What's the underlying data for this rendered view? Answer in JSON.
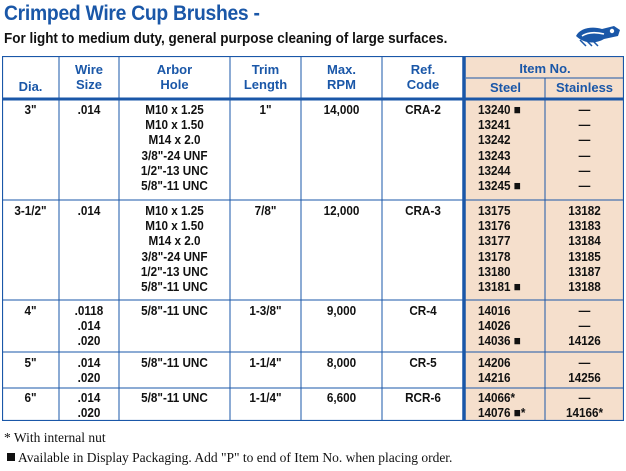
{
  "title": "Crimped Wire Cup Brushes -",
  "subtitle": "For light to medium duty, general purpose cleaning of large surfaces.",
  "logo_icon": "hand-brush-logo-icon",
  "colors": {
    "accent": "#1a57a8",
    "item_bg": "#f5dfcc"
  },
  "headers": {
    "dia": "Dia.",
    "wire_size": [
      "Wire",
      "Size"
    ],
    "arbor_hole": [
      "Arbor",
      "Hole"
    ],
    "trim_length": [
      "Trim",
      "Length"
    ],
    "max_rpm": [
      "Max.",
      "RPM"
    ],
    "ref_code": [
      "Ref.",
      "Code"
    ],
    "item_no": "Item No.",
    "steel": "Steel",
    "stainless": "Stainless"
  },
  "groups": [
    {
      "dia": "3\"",
      "wire": ".014",
      "arbor": "M10 x 1.25\nM10 x 1.50\nM14 x 2.0\n3/8\"-24 UNF\n1/2\"-13 UNC\n5/8\"-11 UNC",
      "trim": "1\"",
      "rpm": "14,000",
      "ref": "CRA-2",
      "steel": "13240 ■\n13241\n13242\n13243\n13244\n13245 ■",
      "stainless": "—\n—\n—\n—\n—\n—"
    },
    {
      "dia": "3-1/2\"",
      "wire": ".014",
      "arbor": "M10 x 1.25\nM10 x 1.50\nM14 x 2.0\n3/8\"-24 UNF\n1/2\"-13 UNC\n5/8\"-11 UNC",
      "trim": "7/8\"",
      "rpm": "12,000",
      "ref": "CRA-3",
      "steel": "13175\n13176\n13177\n13178\n13180\n13181 ■",
      "stainless": "13182\n13183\n13184\n13185\n13187\n13188"
    },
    {
      "dia": "4\"",
      "wire": ".0118\n.014\n.020",
      "arbor": "5/8\"-11 UNC",
      "trim": "1-3/8\"",
      "rpm": "9,000",
      "ref": "CR-4",
      "steel": "14016\n14026\n14036 ■",
      "stainless": "—\n—\n14126"
    },
    {
      "dia": "5\"",
      "wire": ".014\n.020",
      "arbor": "5/8\"-11 UNC",
      "trim": "1-1/4\"",
      "rpm": "8,000",
      "ref": "CR-5",
      "steel": "14206\n14216",
      "stainless": "—\n14256"
    },
    {
      "dia": "6\"",
      "wire": ".014\n.020",
      "arbor": "5/8\"-11 UNC",
      "trim": "1-1/4\"",
      "rpm": "6,600",
      "ref": "RCR-6",
      "steel": "14066*\n14076 ■*",
      "stainless": "—\n14166*"
    }
  ],
  "footnotes": {
    "internal_nut": "* With internal nut",
    "display_packaging": "Available in Display Packaging. Add \"P\" to end of Item No. when placing order."
  }
}
